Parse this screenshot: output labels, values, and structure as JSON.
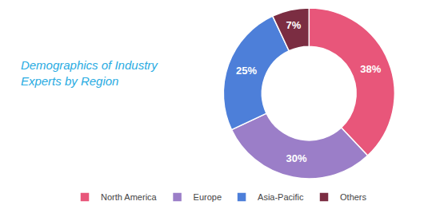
{
  "chart_data": {
    "type": "pie",
    "title": "Demographics of Industry\nExperts by Region",
    "categories": [
      "North America",
      "Europe",
      "Asia-Pacific",
      "Others"
    ],
    "values": [
      38,
      30,
      25,
      7
    ],
    "value_labels": [
      "38%",
      "30%",
      "25%",
      "7%"
    ],
    "data_labels": true,
    "colors": [
      "#E8567A",
      "#9B7EC8",
      "#4D7FD9",
      "#7B2D42"
    ],
    "legend": "bottom"
  }
}
